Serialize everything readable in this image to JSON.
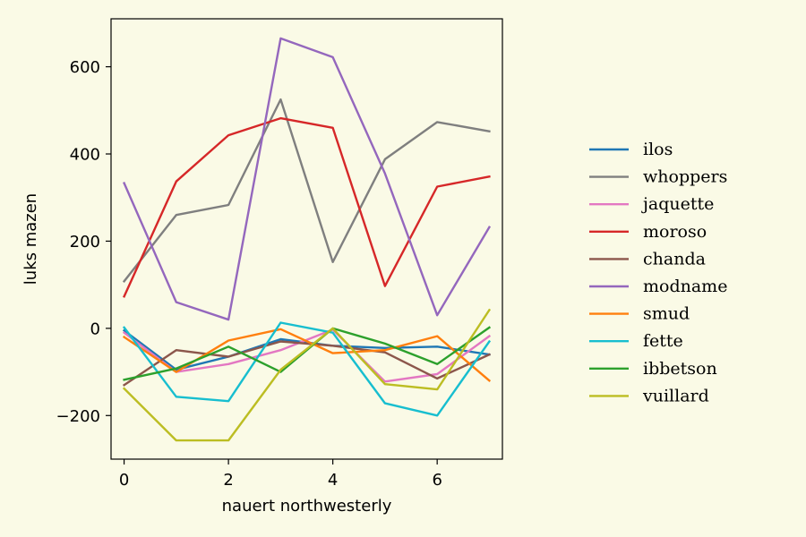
{
  "chart_data": {
    "type": "line",
    "xlabel": "nauert northwesterly",
    "ylabel": "luks mazen",
    "xlim": [
      -0.25,
      7.25
    ],
    "ylim": [
      -300,
      710
    ],
    "xticks": [
      0,
      2,
      4,
      6
    ],
    "xtick_labels": [
      "0",
      "2",
      "4",
      "6"
    ],
    "yticks": [
      -200,
      0,
      200,
      400,
      600
    ],
    "ytick_labels": [
      "−200",
      "0",
      "200",
      "400",
      "600"
    ],
    "x": [
      0,
      1,
      2,
      3,
      4,
      5,
      6,
      7
    ],
    "legend_position": "right",
    "grid": false,
    "background_color": "#fafae6",
    "series": [
      {
        "name": "ilos",
        "color": "#1f77b4",
        "values": [
          -5,
          -95,
          -65,
          -25,
          -40,
          -45,
          -42,
          -60
        ]
      },
      {
        "name": "whoppers",
        "color": "#7f7f7f",
        "values": [
          108,
          260,
          283,
          525,
          152,
          388,
          473,
          452
        ]
      },
      {
        "name": "jaquette",
        "color": "#e377c2",
        "values": [
          -10,
          -100,
          -82,
          -50,
          -3,
          -122,
          -105,
          -18
        ]
      },
      {
        "name": "moroso",
        "color": "#d62728",
        "values": [
          73,
          337,
          443,
          482,
          460,
          97,
          325,
          348
        ]
      },
      {
        "name": "chanda",
        "color": "#8c564b",
        "values": [
          -130,
          -50,
          -65,
          -30,
          -40,
          -55,
          -115,
          -60
        ]
      },
      {
        "name": "modname",
        "color": "#9467bd",
        "values": [
          333,
          60,
          20,
          665,
          622,
          355,
          30,
          232
        ]
      },
      {
        "name": "smud",
        "color": "#ff7f0e",
        "values": [
          -20,
          -100,
          -28,
          -2,
          -57,
          -50,
          -18,
          -120
        ]
      },
      {
        "name": "fette",
        "color": "#17becf",
        "values": [
          2,
          -157,
          -167,
          13,
          -10,
          -172,
          -200,
          -30
        ]
      },
      {
        "name": "ibbetson",
        "color": "#2ca02c",
        "values": [
          -118,
          -92,
          -42,
          -100,
          0,
          -35,
          -82,
          2
        ]
      },
      {
        "name": "vuillard",
        "color": "#bcbd22",
        "values": [
          -138,
          -257,
          -257,
          -95,
          0,
          -128,
          -140,
          42
        ]
      }
    ]
  }
}
